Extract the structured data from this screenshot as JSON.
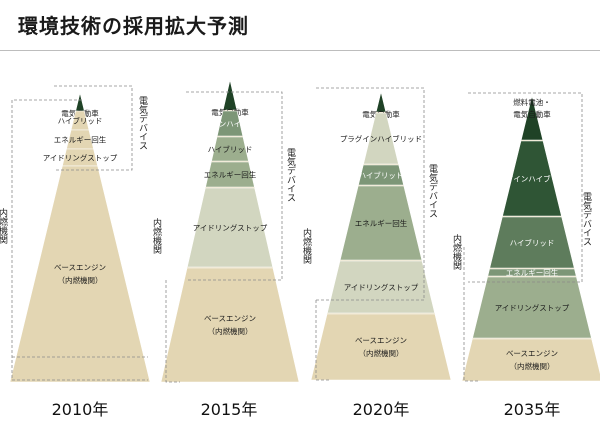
{
  "title": "環境技術の採用拡大予測",
  "group_labels": {
    "electric": "電気デバイス",
    "combustion": "内燃機関"
  },
  "colors": {
    "base": "#e3d6b3",
    "light_green": "#d2d6c0",
    "mid_green": "#9cae8e",
    "green2": "#7d9677",
    "green3": "#5e7c5c",
    "dark_green": "#2f5535",
    "darkest_green": "#1f4226"
  },
  "pyramids": [
    {
      "year": "2010年",
      "layers": [
        {
          "label": "電気自動車",
          "color": "darkest_green"
        },
        {
          "label": "ハイブリッド",
          "color": "base"
        },
        {
          "label": "エネルギー回生",
          "color": "base"
        },
        {
          "label": "アイドリングストップ",
          "color": "base"
        },
        {
          "label": "ベースエンジン",
          "sublabel": "（内燃機関）",
          "color": "base"
        }
      ]
    },
    {
      "year": "2015年",
      "layers": [
        {
          "label": "電気自動車",
          "color": "darkest_green"
        },
        {
          "label": "プラグインハイブリッド",
          "color": "green2"
        },
        {
          "label": "ハイブリッド",
          "color": "mid_green"
        },
        {
          "label": "エネルギー回生",
          "color": "mid_green"
        },
        {
          "label": "アイドリングストップ",
          "color": "light_green"
        },
        {
          "label": "ベースエンジン",
          "sublabel": "（内燃機関）",
          "color": "base"
        }
      ]
    },
    {
      "year": "2020年",
      "layers": [
        {
          "label": "電気自動車",
          "color": "darkest_green"
        },
        {
          "label": "プラグインハイブリッド",
          "color": "light_green"
        },
        {
          "label": "ハイブリッド",
          "color": "green2"
        },
        {
          "label": "エネルギー回生",
          "color": "mid_green"
        },
        {
          "label": "アイドリングストップ",
          "color": "light_green"
        },
        {
          "label": "ベースエンジン",
          "sublabel": "（内燃機関）",
          "color": "base"
        }
      ]
    },
    {
      "year": "2035年",
      "layers": [
        {
          "label": "燃料電池・\n電気自動車",
          "color": "darkest_green"
        },
        {
          "label": "プラグインハイブリッド",
          "color": "dark_green"
        },
        {
          "label": "ハイブリッド",
          "color": "green3"
        },
        {
          "label": "エネルギー回生",
          "color": "green2"
        },
        {
          "label": "アイドリングストップ",
          "color": "mid_green"
        },
        {
          "label": "ベースエンジン",
          "sublabel": "（内燃機関）",
          "color": "base"
        }
      ]
    }
  ]
}
